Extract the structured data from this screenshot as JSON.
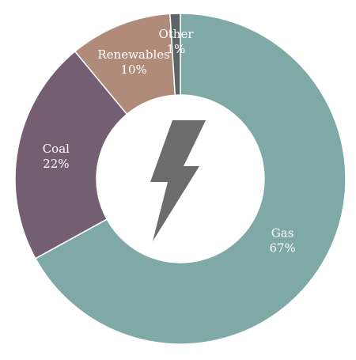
{
  "chart_data": {
    "type": "pie",
    "variant": "donut",
    "title": "",
    "center_icon": "lightning-bolt-icon",
    "categories": [
      "Gas",
      "Coal",
      "Renewables",
      "Other"
    ],
    "values": [
      67,
      22,
      10,
      1
    ],
    "labels": [
      "67%",
      "22%",
      "10%",
      "1%"
    ],
    "colors": [
      "#7fa9a6",
      "#745e71",
      "#b08b79",
      "#5b6466"
    ],
    "center_icon_color": "#6c6c6c"
  }
}
